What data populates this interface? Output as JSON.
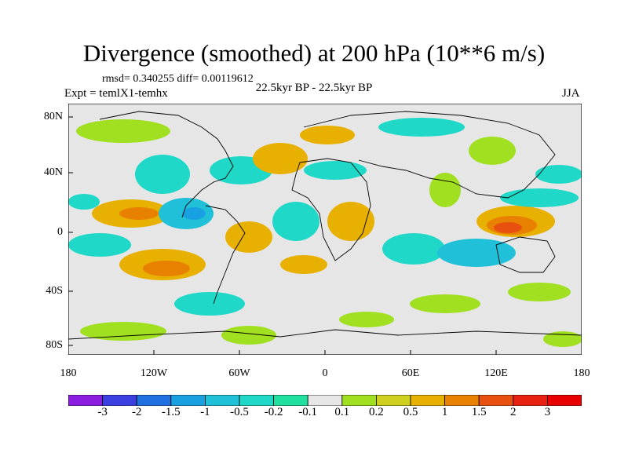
{
  "title": "Divergence (smoothed) at 200 hPa (10**6 m/s)",
  "stats": "rmsd= 0.340255  diff= 0.00119612",
  "experiment": "Expt = temlX1-temhx",
  "period": "22.5kyr BP - 22.5kyr BP",
  "season": "JJA",
  "y_ticks": [
    "80N",
    "40N",
    "0",
    "40S",
    "80S"
  ],
  "x_ticks": [
    "180",
    "120W",
    "60W",
    "0",
    "60E",
    "120E",
    "180"
  ],
  "colorbar": {
    "labels": [
      "-3",
      "-2",
      "-1.5",
      "-1",
      "-0.5",
      "-0.2",
      "-0.1",
      "0.1",
      "0.2",
      "0.5",
      "1",
      "1.5",
      "2",
      "3"
    ],
    "colors": [
      "#8a1de0",
      "#3b3fe0",
      "#1f70e0",
      "#18a0e0",
      "#1fc0d8",
      "#20d8c8",
      "#20e0a0",
      "#e6e6e6",
      "#a0e020",
      "#d0d020",
      "#e8b000",
      "#e88000",
      "#e85010",
      "#e82010",
      "#e80000"
    ]
  },
  "field": {
    "neutral": "#e6e6e6",
    "coastline": "#000000"
  }
}
